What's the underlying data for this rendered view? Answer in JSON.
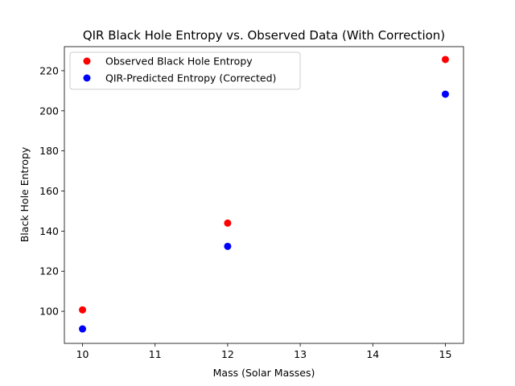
{
  "chart_data": {
    "type": "scatter",
    "title": "QIR Black Hole Entropy vs. Observed Data (With Correction)",
    "xlabel": "Mass (Solar Masses)",
    "ylabel": "Black Hole Entropy",
    "xlim": [
      9.75,
      15.25
    ],
    "ylim": [
      84,
      232
    ],
    "xticks": [
      10,
      11,
      12,
      13,
      14,
      15
    ],
    "yticks": [
      100,
      120,
      140,
      160,
      180,
      200,
      220
    ],
    "grid": false,
    "legend_position": "upper-left",
    "series": [
      {
        "name": "Observed Black Hole Entropy",
        "color": "#ff0000",
        "x": [
          10,
          12,
          15
        ],
        "y": [
          100.7,
          144.0,
          225.6
        ]
      },
      {
        "name": "QIR-Predicted Entropy (Corrected)",
        "color": "#0000ff",
        "x": [
          10,
          12,
          15
        ],
        "y": [
          91.2,
          132.4,
          208.3
        ]
      }
    ]
  }
}
